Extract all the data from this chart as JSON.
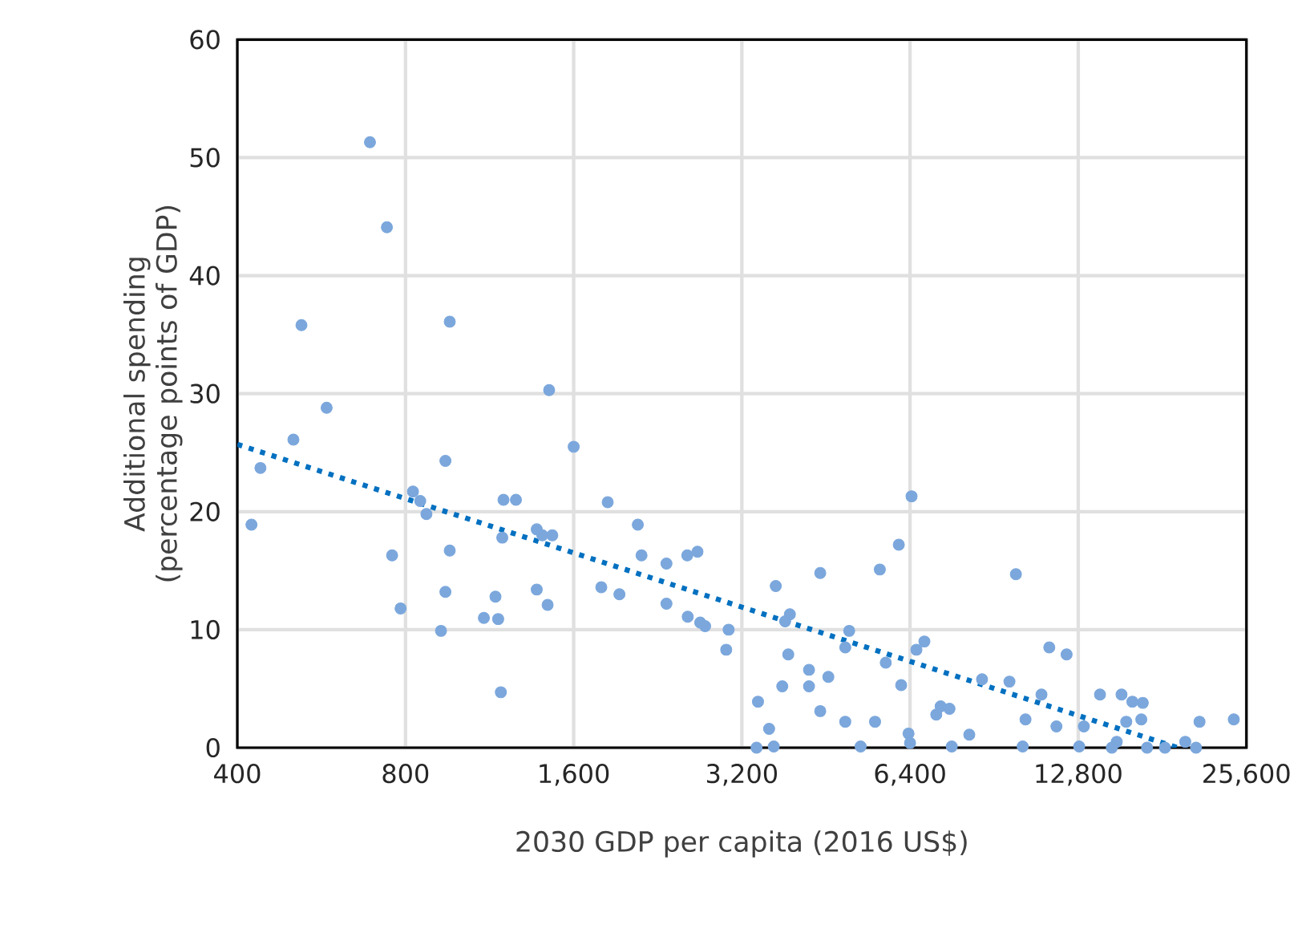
{
  "chart_data": {
    "type": "scatter",
    "xlabel": "2030 GDP per capita (2016 US$)",
    "ylabel": "Additional spending (percentage points of GDP)",
    "log": "x",
    "xlim": [
      400,
      25600
    ],
    "ylim": [
      0,
      60
    ],
    "xticks": [
      400,
      800,
      {
        "value": 1600,
        "label": "1,600"
      },
      {
        "value": 3200,
        "label": "3,200"
      },
      {
        "value": 6400,
        "label": "6,400"
      },
      {
        "value": 12800,
        "label": "12,800"
      },
      {
        "value": 25600,
        "label": "25,600"
      }
    ],
    "yticks": [
      0,
      10,
      20,
      30,
      40,
      50,
      60
    ],
    "grid": true,
    "series": [
      {
        "color": "#7ba7dc",
        "marker": "circle",
        "x": [
          424,
          440,
          504,
          521,
          578,
          691,
          741,
          757,
          784,
          825,
          850,
          872,
          943,
          960,
          960,
          943,
          926,
          1172,
          1159,
          1185,
          1198,
          1261,
          1192,
          1446,
          1437,
          1406,
          1465,
          1374,
          1374,
          1105,
          1600,
          1793,
          1841,
          1932,
          2084,
          2116,
          2345,
          2345,
          2555,
          2665,
          2695,
          2560,
          2750,
          3000,
          3030,
          6440,
          6110,
          4420,
          5650,
          9900,
          3680,
          3900,
          3825,
          4980,
          4900,
          3875,
          6790,
          6570,
          5790,
          6170,
          4220,
          4570,
          4220,
          3780,
          3420,
          4420,
          3580,
          4900,
          5540,
          3400,
          3650,
          5220,
          6360,
          6400,
          7260,
          7530,
          7130,
          8170,
          7600,
          9640,
          8610,
          11360,
          12200,
          11000,
          10300,
          11700,
          10180,
          12850,
          13100,
          14000,
          15300,
          16000,
          16700,
          16600,
          15600,
          15000,
          19900,
          21100,
          24300,
          17000,
          18300,
          20800,
          14700
        ],
        "values": [
          18.9,
          23.7,
          26.1,
          35.8,
          28.8,
          51.3,
          44.1,
          16.3,
          11.8,
          21.7,
          20.9,
          19.8,
          24.3,
          36.1,
          16.7,
          13.2,
          9.9,
          10.9,
          12.8,
          4.7,
          21.0,
          21.0,
          17.8,
          30.3,
          12.1,
          18.0,
          18.0,
          18.5,
          13.4,
          11.0,
          25.5,
          13.6,
          20.8,
          13.0,
          18.9,
          16.3,
          12.2,
          15.6,
          16.3,
          16.6,
          10.6,
          11.1,
          10.3,
          8.3,
          10.0,
          21.3,
          17.2,
          14.8,
          15.1,
          14.7,
          13.7,
          11.3,
          10.7,
          9.9,
          8.5,
          7.9,
          9.0,
          8.3,
          7.2,
          5.3,
          6.6,
          6.0,
          5.2,
          5.2,
          3.9,
          3.1,
          1.6,
          2.2,
          2.2,
          0.0,
          0.1,
          0.1,
          1.2,
          0.4,
          3.5,
          3.3,
          2.8,
          1.1,
          0.1,
          5.6,
          5.8,
          8.5,
          7.9,
          4.5,
          2.4,
          1.8,
          0.1,
          0.1,
          1.8,
          4.5,
          4.5,
          3.9,
          3.8,
          2.4,
          2.2,
          0.5,
          0.5,
          2.2,
          2.4,
          0.0,
          0.0,
          0.0,
          0.0
        ]
      },
      {
        "type": "line",
        "color": "#0070c0",
        "marker": "none",
        "line_style": "dotted",
        "x": [
          400,
          19300
        ],
        "values": [
          25.7,
          0
        ]
      }
    ]
  }
}
